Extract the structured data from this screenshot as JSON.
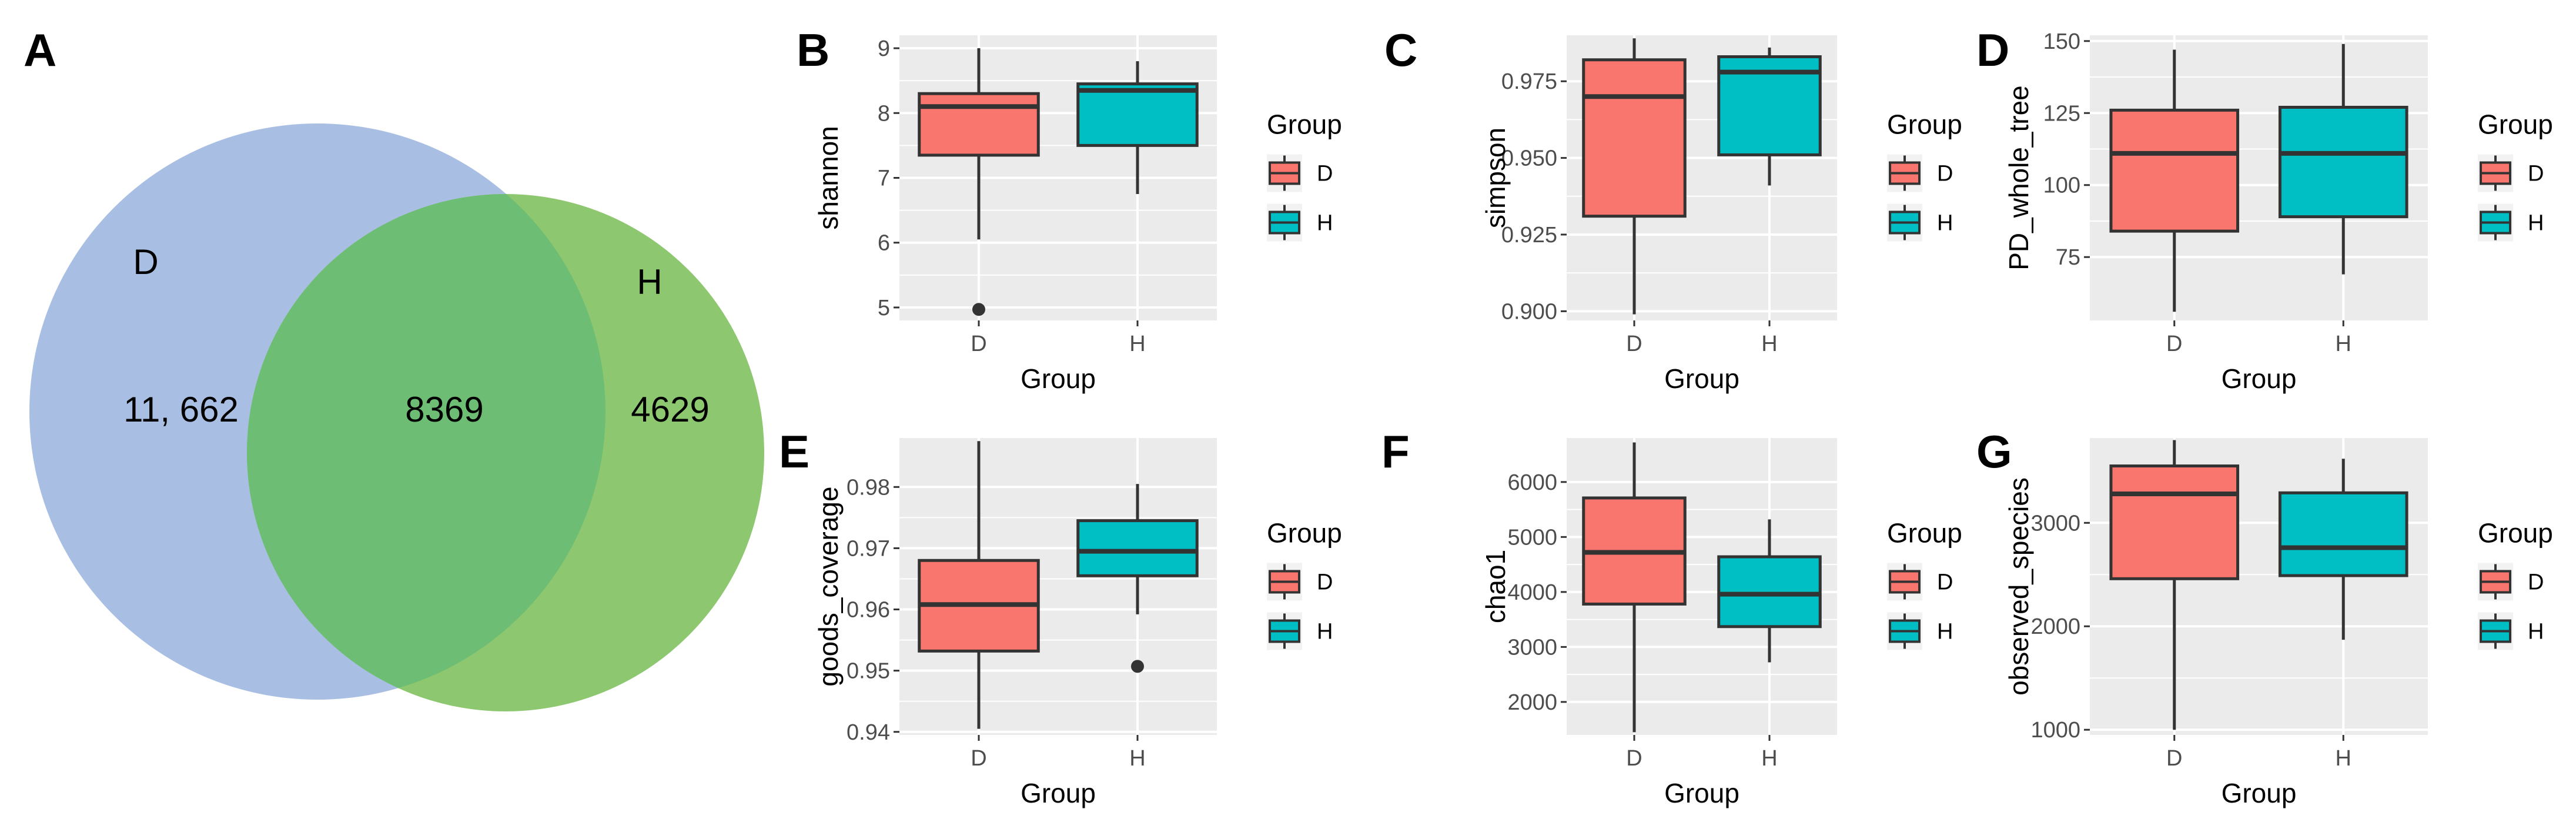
{
  "colors": {
    "D": "#F8766D",
    "H": "#00BFC4",
    "panel_bg": "#EBEBEB",
    "grid": "#FFFFFF",
    "venn_D": "#A8BFE3",
    "venn_H": "#8DC76F",
    "venn_overlap": "#6DBE74"
  },
  "chart_data": [
    {
      "type": "venn",
      "panel": "A",
      "sets": [
        {
          "name": "D"
        },
        {
          "name": "H"
        }
      ],
      "regions": {
        "D_only": "11, 662",
        "both": "8369",
        "H_only": "4629"
      }
    },
    {
      "type": "box",
      "panel": "B",
      "xlabel": "Group",
      "ylabel": "shannon",
      "categories": [
        "D",
        "H"
      ],
      "ylim": [
        4.8,
        9.2
      ],
      "ticks": [
        5,
        6,
        7,
        8,
        9
      ],
      "tick_labels": [
        "5",
        "6",
        "7",
        "8",
        "9"
      ],
      "boxes": [
        {
          "group": "D",
          "min": 6.05,
          "q1": 7.35,
          "median": 8.1,
          "q3": 8.3,
          "max": 9.0,
          "outliers": [
            4.97
          ]
        },
        {
          "group": "H",
          "min": 6.75,
          "q1": 7.5,
          "median": 8.35,
          "q3": 8.45,
          "max": 8.8,
          "outliers": []
        }
      ],
      "legend": {
        "title": "Group",
        "entries": [
          "D",
          "H"
        ]
      }
    },
    {
      "type": "box",
      "panel": "C",
      "xlabel": "Group",
      "ylabel": "simpson",
      "categories": [
        "D",
        "H"
      ],
      "ylim": [
        0.897,
        0.99
      ],
      "ticks": [
        0.9,
        0.925,
        0.95,
        0.975
      ],
      "tick_labels": [
        "0.900",
        "0.925",
        "0.950",
        "0.975"
      ],
      "boxes": [
        {
          "group": "D",
          "min": 0.899,
          "q1": 0.931,
          "median": 0.97,
          "q3": 0.982,
          "max": 0.989,
          "outliers": []
        },
        {
          "group": "H",
          "min": 0.941,
          "q1": 0.951,
          "median": 0.978,
          "q3": 0.983,
          "max": 0.986,
          "outliers": []
        }
      ],
      "legend": {
        "title": "Group",
        "entries": [
          "D",
          "H"
        ]
      }
    },
    {
      "type": "box",
      "panel": "D",
      "xlabel": "Group",
      "ylabel": "PD_whole_tree",
      "categories": [
        "D",
        "H"
      ],
      "ylim": [
        53,
        152
      ],
      "ticks": [
        75,
        100,
        125,
        150
      ],
      "tick_labels": [
        "75",
        "100",
        "125",
        "150"
      ],
      "boxes": [
        {
          "group": "D",
          "min": 56,
          "q1": 84,
          "median": 111,
          "q3": 126,
          "max": 147,
          "outliers": []
        },
        {
          "group": "H",
          "min": 69,
          "q1": 89,
          "median": 111,
          "q3": 127,
          "max": 149,
          "outliers": []
        }
      ],
      "legend": {
        "title": "Group",
        "entries": [
          "D",
          "H"
        ]
      }
    },
    {
      "type": "box",
      "panel": "E",
      "xlabel": "Group",
      "ylabel": "goods_coverage",
      "categories": [
        "D",
        "H"
      ],
      "ylim": [
        0.9395,
        0.988
      ],
      "ticks": [
        0.94,
        0.95,
        0.96,
        0.97,
        0.98
      ],
      "tick_labels": [
        "0.94",
        "0.95",
        "0.96",
        "0.97",
        "0.98"
      ],
      "boxes": [
        {
          "group": "D",
          "min": 0.9405,
          "q1": 0.9532,
          "median": 0.9608,
          "q3": 0.968,
          "max": 0.9875,
          "outliers": []
        },
        {
          "group": "H",
          "min": 0.9592,
          "q1": 0.9655,
          "median": 0.9695,
          "q3": 0.9745,
          "max": 0.9805,
          "outliers": [
            0.9507
          ]
        }
      ],
      "legend": {
        "title": "Group",
        "entries": [
          "D",
          "H"
        ]
      }
    },
    {
      "type": "box",
      "panel": "F",
      "xlabel": "Group",
      "ylabel": "chao1",
      "categories": [
        "D",
        "H"
      ],
      "ylim": [
        1400,
        6800
      ],
      "ticks": [
        2000,
        3000,
        4000,
        5000,
        6000
      ],
      "tick_labels": [
        "2000",
        "3000",
        "4000",
        "5000",
        "6000"
      ],
      "boxes": [
        {
          "group": "D",
          "min": 1450,
          "q1": 3780,
          "median": 4720,
          "q3": 5710,
          "max": 6720,
          "outliers": []
        },
        {
          "group": "H",
          "min": 2720,
          "q1": 3370,
          "median": 3960,
          "q3": 4640,
          "max": 5320,
          "outliers": []
        }
      ],
      "legend": {
        "title": "Group",
        "entries": [
          "D",
          "H"
        ]
      }
    },
    {
      "type": "box",
      "panel": "G",
      "xlabel": "Group",
      "ylabel": "observed_species",
      "categories": [
        "D",
        "H"
      ],
      "ylim": [
        950,
        3820
      ],
      "ticks": [
        1000,
        2000,
        3000
      ],
      "tick_labels": [
        "1000",
        "2000",
        "3000"
      ],
      "boxes": [
        {
          "group": "D",
          "min": 1000,
          "q1": 2460,
          "median": 3280,
          "q3": 3550,
          "max": 3800,
          "outliers": []
        },
        {
          "group": "H",
          "min": 1870,
          "q1": 2490,
          "median": 2760,
          "q3": 3290,
          "max": 3620,
          "outliers": []
        }
      ],
      "legend": {
        "title": "Group",
        "entries": [
          "D",
          "H"
        ]
      }
    }
  ]
}
